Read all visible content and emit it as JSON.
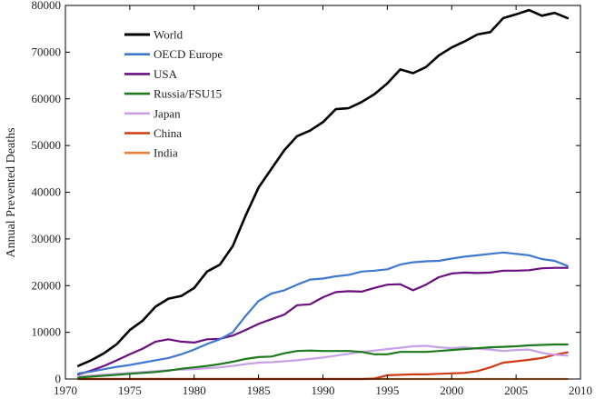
{
  "chart_data": {
    "type": "line",
    "title": "",
    "xlabel": "",
    "ylabel": "Annual Prevented Deaths",
    "xlim": [
      1970,
      2010
    ],
    "ylim": [
      0,
      80000
    ],
    "x_ticks": [
      1970,
      1975,
      1980,
      1985,
      1990,
      1995,
      2000,
      2005,
      2010
    ],
    "y_ticks": [
      0,
      10000,
      20000,
      30000,
      40000,
      50000,
      60000,
      70000,
      80000
    ],
    "legend_position": "top-left",
    "x": [
      1971,
      1972,
      1973,
      1974,
      1975,
      1976,
      1977,
      1978,
      1979,
      1980,
      1981,
      1982,
      1983,
      1984,
      1985,
      1986,
      1987,
      1988,
      1989,
      1990,
      1991,
      1992,
      1993,
      1994,
      1995,
      1996,
      1997,
      1998,
      1999,
      2000,
      2001,
      2002,
      2003,
      2004,
      2005,
      2006,
      2007,
      2008,
      2009
    ],
    "series": [
      {
        "name": "World",
        "color": "#000000",
        "values": [
          2800,
          4000,
          5500,
          7500,
          10500,
          12500,
          15500,
          17200,
          17800,
          19500,
          23000,
          24500,
          28500,
          35000,
          41000,
          45000,
          49000,
          52000,
          53200,
          55000,
          57800,
          58000,
          59300,
          61000,
          63300,
          66300,
          65500,
          66800,
          69300,
          71000,
          72300,
          73800,
          74300,
          77300,
          78100,
          79000,
          77800,
          78400,
          77300
        ]
      },
      {
        "name": "OECD Europe",
        "color": "#3f78d0",
        "values": [
          1200,
          1600,
          2100,
          2600,
          3000,
          3500,
          4000,
          4500,
          5300,
          6300,
          7500,
          8500,
          10000,
          13500,
          16700,
          18300,
          19000,
          20200,
          21300,
          21500,
          22000,
          22300,
          23000,
          23200,
          23500,
          24500,
          25000,
          25200,
          25300,
          25800,
          26200,
          26500,
          26800,
          27100,
          26800,
          26500,
          25700,
          25300,
          24200
        ]
      },
      {
        "name": "USA",
        "color": "#6a0f80",
        "values": [
          1000,
          1800,
          2800,
          4000,
          5300,
          6500,
          8000,
          8500,
          8000,
          7800,
          8500,
          8600,
          9300,
          10500,
          11800,
          12800,
          13800,
          15800,
          16000,
          17500,
          18600,
          18800,
          18700,
          19500,
          20200,
          20300,
          19000,
          20200,
          21800,
          22600,
          22800,
          22700,
          22800,
          23200,
          23200,
          23300,
          23700,
          23800,
          23800
        ]
      },
      {
        "name": "Russia/FSU15",
        "color": "#1e7a1e",
        "values": [
          300,
          500,
          700,
          900,
          1100,
          1300,
          1500,
          1800,
          2200,
          2500,
          2800,
          3200,
          3700,
          4300,
          4700,
          4800,
          5500,
          6000,
          6100,
          6000,
          6000,
          6000,
          5800,
          5300,
          5300,
          5800,
          5800,
          5800,
          6000,
          6200,
          6400,
          6600,
          6800,
          6900,
          7000,
          7200,
          7300,
          7400,
          7400
        ]
      },
      {
        "name": "Japan",
        "color": "#c7a0e6",
        "values": [
          500,
          700,
          900,
          1100,
          1300,
          1500,
          1700,
          1900,
          2000,
          2100,
          2300,
          2500,
          2800,
          3200,
          3500,
          3600,
          3800,
          4000,
          4300,
          4600,
          5000,
          5400,
          5800,
          6100,
          6400,
          6700,
          7000,
          7100,
          6800,
          6600,
          6800,
          6500,
          6300,
          6000,
          6200,
          6300,
          5600,
          5200,
          5000
        ]
      },
      {
        "name": "China",
        "color": "#d03a12",
        "values": [
          0,
          0,
          0,
          0,
          0,
          0,
          0,
          0,
          0,
          0,
          0,
          0,
          0,
          0,
          0,
          0,
          0,
          0,
          0,
          0,
          0,
          0,
          0,
          100,
          800,
          900,
          1000,
          1000,
          1100,
          1200,
          1300,
          1700,
          2500,
          3500,
          3800,
          4100,
          4500,
          5200,
          5700
        ]
      },
      {
        "name": "India",
        "color": "#e8823a",
        "values": [
          0,
          0,
          0,
          0,
          0,
          0,
          0,
          0,
          0,
          0,
          0,
          0,
          0,
          0,
          0,
          0,
          0,
          0,
          0,
          0,
          0,
          0,
          0,
          0,
          0,
          0,
          0,
          0,
          0,
          0,
          0,
          0,
          0,
          0,
          0,
          0,
          0,
          0,
          0
        ]
      }
    ]
  }
}
